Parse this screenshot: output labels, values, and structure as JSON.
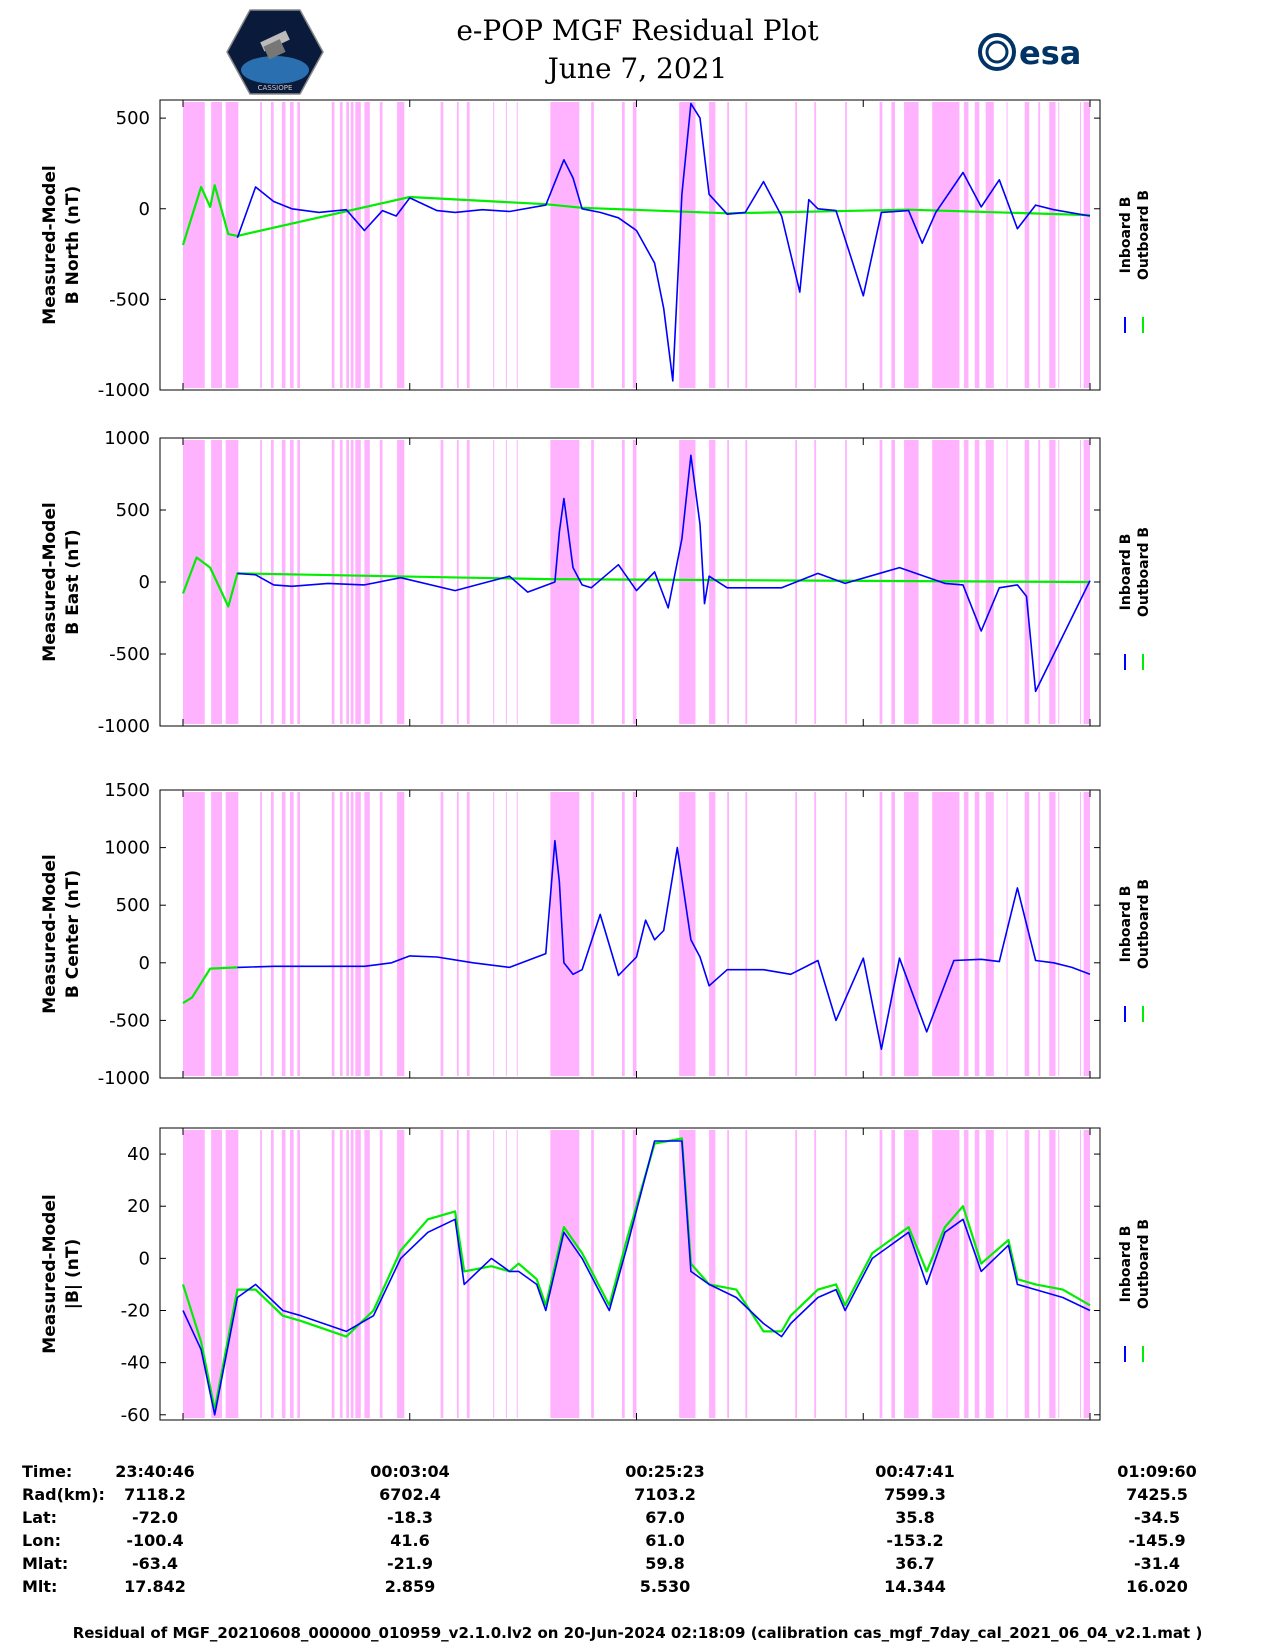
{
  "header": {
    "title_line1": "e-POP MGF Residual Plot",
    "title_line2": "June 7, 2021",
    "logo_left_text": "CASSIOPE",
    "logo_right_text": "esa"
  },
  "legend": {
    "inboard": "Inboard B",
    "outboard": "Outboard B"
  },
  "colors": {
    "inboard": "#0000ff",
    "outboard": "#00ee00",
    "shading": "#ffb3ff"
  },
  "shading_regions": [
    [
      0.0,
      0.024
    ],
    [
      0.031,
      0.043
    ],
    [
      0.047,
      0.061
    ],
    [
      0.085,
      0.087
    ],
    [
      0.097,
      0.1
    ],
    [
      0.109,
      0.113
    ],
    [
      0.118,
      0.122
    ],
    [
      0.126,
      0.129
    ],
    [
      0.164,
      0.167
    ],
    [
      0.173,
      0.176
    ],
    [
      0.18,
      0.183
    ],
    [
      0.185,
      0.188
    ],
    [
      0.19,
      0.196
    ],
    [
      0.2,
      0.206
    ],
    [
      0.217,
      0.22
    ],
    [
      0.236,
      0.244
    ],
    [
      0.284,
      0.287
    ],
    [
      0.302,
      0.304
    ],
    [
      0.313,
      0.316
    ],
    [
      0.342,
      0.343
    ],
    [
      0.356,
      0.357
    ],
    [
      0.368,
      0.369
    ],
    [
      0.405,
      0.437
    ],
    [
      0.45,
      0.453
    ],
    [
      0.484,
      0.487
    ],
    [
      0.496,
      0.5
    ],
    [
      0.547,
      0.565
    ],
    [
      0.58,
      0.587
    ],
    [
      0.6,
      0.602
    ],
    [
      0.62,
      0.622
    ],
    [
      0.675,
      0.677
    ],
    [
      0.696,
      0.698
    ],
    [
      0.73,
      0.732
    ],
    [
      0.768,
      0.771
    ],
    [
      0.781,
      0.785
    ],
    [
      0.795,
      0.811
    ],
    [
      0.826,
      0.856
    ],
    [
      0.861,
      0.866
    ],
    [
      0.873,
      0.878
    ],
    [
      0.885,
      0.894
    ],
    [
      0.908,
      0.909
    ],
    [
      0.928,
      0.933
    ],
    [
      0.943,
      0.945
    ],
    [
      0.955,
      0.962
    ],
    [
      0.965,
      0.966
    ],
    [
      0.989,
      0.99
    ],
    [
      0.993,
      1.0
    ]
  ],
  "chart_data": [
    {
      "type": "line",
      "ylabel_line1": "Measured-Model",
      "ylabel_line2": "B North (nT)",
      "ylim": [
        -1000,
        600
      ],
      "yticks": [
        -1000,
        -500,
        0,
        500
      ],
      "ytick_labels": [
        "-1000",
        "-500",
        "0",
        "500"
      ],
      "series": [
        {
          "name": "Inboard B",
          "x": [
            0.06,
            0.08,
            0.1,
            0.12,
            0.15,
            0.18,
            0.2,
            0.22,
            0.235,
            0.25,
            0.28,
            0.3,
            0.33,
            0.36,
            0.4,
            0.42,
            0.43,
            0.44,
            0.46,
            0.48,
            0.5,
            0.52,
            0.53,
            0.54,
            0.55,
            0.56,
            0.57,
            0.58,
            0.6,
            0.62,
            0.64,
            0.66,
            0.68,
            0.69,
            0.7,
            0.72,
            0.75,
            0.77,
            0.8,
            0.815,
            0.83,
            0.86,
            0.88,
            0.9,
            0.92,
            0.94,
            0.96,
            1.0
          ],
          "values": [
            -160,
            120,
            40,
            0,
            -20,
            -5,
            -120,
            -10,
            -40,
            60,
            -10,
            -20,
            -5,
            -15,
            20,
            270,
            170,
            0,
            -20,
            -50,
            -120,
            -300,
            -550,
            -950,
            80,
            580,
            500,
            80,
            -30,
            -20,
            150,
            -40,
            -460,
            50,
            0,
            -10,
            -480,
            -20,
            -10,
            -190,
            -20,
            200,
            10,
            160,
            -110,
            20,
            -5,
            -40
          ]
        },
        {
          "name": "Outboard B",
          "x": [
            0.0,
            0.02,
            0.03,
            0.035,
            0.05,
            0.06,
            0.25,
            0.4,
            0.44,
            0.6,
            0.8,
            1.0
          ],
          "values": [
            -200,
            120,
            10,
            130,
            -140,
            -150,
            65,
            25,
            5,
            -25,
            -5,
            -35
          ]
        }
      ]
    },
    {
      "type": "line",
      "ylabel_line1": "Measured-Model",
      "ylabel_line2": "B East (nT)",
      "ylim": [
        -1000,
        1000
      ],
      "yticks": [
        -1000,
        -500,
        0,
        500,
        1000
      ],
      "ytick_labels": [
        "-1000",
        "-500",
        "0",
        "500",
        "1000"
      ],
      "series": [
        {
          "name": "Inboard B",
          "x": [
            0.06,
            0.08,
            0.1,
            0.12,
            0.16,
            0.2,
            0.24,
            0.3,
            0.33,
            0.36,
            0.38,
            0.41,
            0.415,
            0.42,
            0.43,
            0.44,
            0.45,
            0.48,
            0.5,
            0.52,
            0.535,
            0.55,
            0.56,
            0.57,
            0.575,
            0.58,
            0.6,
            0.66,
            0.7,
            0.73,
            0.79,
            0.84,
            0.86,
            0.88,
            0.9,
            0.92,
            0.93,
            0.94,
            1.0
          ],
          "values": [
            60,
            50,
            -20,
            -30,
            -10,
            -20,
            30,
            -60,
            -10,
            40,
            -70,
            0,
            350,
            580,
            100,
            -20,
            -40,
            120,
            -60,
            70,
            -180,
            300,
            880,
            400,
            -150,
            40,
            -40,
            -40,
            60,
            -10,
            100,
            -10,
            -20,
            -340,
            -40,
            -20,
            -100,
            -760,
            10
          ]
        },
        {
          "name": "Outboard B",
          "x": [
            0.0,
            0.015,
            0.03,
            0.05,
            0.06,
            0.4,
            0.7,
            1.0
          ],
          "values": [
            -80,
            170,
            100,
            -170,
            60,
            20,
            10,
            0
          ]
        }
      ]
    },
    {
      "type": "line",
      "ylabel_line1": "Measured-Model",
      "ylabel_line2": "B Center (nT)",
      "ylim": [
        -1000,
        1500
      ],
      "yticks": [
        -1000,
        -500,
        0,
        500,
        1000,
        1500
      ],
      "ytick_labels": [
        "-1000",
        "-500",
        "0",
        "500",
        "1000",
        "1500"
      ],
      "series": [
        {
          "name": "Inboard B",
          "x": [
            0.06,
            0.1,
            0.15,
            0.2,
            0.23,
            0.25,
            0.28,
            0.32,
            0.36,
            0.4,
            0.41,
            0.415,
            0.42,
            0.43,
            0.44,
            0.46,
            0.48,
            0.5,
            0.51,
            0.52,
            0.53,
            0.545,
            0.56,
            0.57,
            0.58,
            0.6,
            0.64,
            0.67,
            0.7,
            0.72,
            0.75,
            0.77,
            0.79,
            0.82,
            0.85,
            0.88,
            0.9,
            0.92,
            0.94,
            0.96,
            0.98,
            1.0
          ],
          "values": [
            -40,
            -30,
            -30,
            -30,
            0,
            60,
            50,
            0,
            -40,
            80,
            1060,
            700,
            0,
            -100,
            -60,
            420,
            -110,
            50,
            370,
            200,
            280,
            1000,
            200,
            50,
            -200,
            -60,
            -60,
            -100,
            20,
            -500,
            40,
            -750,
            40,
            -600,
            20,
            30,
            10,
            650,
            20,
            0,
            -40,
            -100
          ]
        },
        {
          "name": "Outboard B",
          "x": [
            0.0,
            0.01,
            0.03,
            0.06
          ],
          "values": [
            -350,
            -300,
            -50,
            -40
          ]
        }
      ]
    },
    {
      "type": "line",
      "ylabel_line1": "Measured-Model",
      "ylabel_line2": "|B| (nT)",
      "ylim": [
        -62,
        50
      ],
      "yticks": [
        -60,
        -40,
        -20,
        0,
        20,
        40
      ],
      "ytick_labels": [
        "-60",
        "-40",
        "-20",
        "0",
        "20",
        "40"
      ],
      "series": [
        {
          "name": "Inboard B",
          "x": [
            0.0,
            0.02,
            0.035,
            0.06,
            0.08,
            0.11,
            0.13,
            0.18,
            0.21,
            0.24,
            0.27,
            0.3,
            0.31,
            0.34,
            0.36,
            0.37,
            0.39,
            0.4,
            0.42,
            0.44,
            0.47,
            0.49,
            0.52,
            0.55,
            0.56,
            0.58,
            0.61,
            0.64,
            0.66,
            0.67,
            0.7,
            0.72,
            0.73,
            0.76,
            0.8,
            0.82,
            0.84,
            0.86,
            0.88,
            0.91,
            0.92,
            0.94,
            0.97,
            1.0
          ],
          "values": [
            -20,
            -35,
            -60,
            -15,
            -10,
            -20,
            -22,
            -28,
            -22,
            0,
            10,
            15,
            -10,
            0,
            -5,
            -5,
            -10,
            -20,
            10,
            0,
            -20,
            5,
            45,
            45,
            -5,
            -10,
            -15,
            -25,
            -30,
            -25,
            -15,
            -12,
            -20,
            0,
            10,
            -10,
            10,
            15,
            -5,
            5,
            -10,
            -12,
            -15,
            -20
          ]
        },
        {
          "name": "Outboard B",
          "x": [
            0.0,
            0.02,
            0.035,
            0.06,
            0.08,
            0.11,
            0.13,
            0.18,
            0.21,
            0.24,
            0.27,
            0.3,
            0.31,
            0.34,
            0.36,
            0.37,
            0.39,
            0.4,
            0.42,
            0.44,
            0.47,
            0.49,
            0.52,
            0.55,
            0.56,
            0.58,
            0.61,
            0.64,
            0.66,
            0.67,
            0.7,
            0.72,
            0.73,
            0.76,
            0.8,
            0.82,
            0.84,
            0.86,
            0.88,
            0.91,
            0.92,
            0.94,
            0.97,
            1.0
          ],
          "values": [
            -10,
            -32,
            -58,
            -12,
            -12,
            -22,
            -24,
            -30,
            -20,
            3,
            15,
            18,
            -5,
            -3,
            -5,
            -2,
            -8,
            -18,
            12,
            2,
            -18,
            8,
            44,
            46,
            -2,
            -10,
            -12,
            -28,
            -28,
            -22,
            -12,
            -10,
            -18,
            2,
            12,
            -5,
            12,
            20,
            -2,
            7,
            -8,
            -10,
            -12,
            -18
          ]
        }
      ]
    }
  ],
  "info": {
    "labels": [
      "Time:",
      "Rad(km):",
      "Lat:",
      "Lon:",
      "Mlat:",
      "Mlt:"
    ],
    "columns": [
      [
        "23:40:46",
        "7118.2",
        "-72.0",
        "-100.4",
        "-63.4",
        "17.842"
      ],
      [
        "00:03:04",
        "6702.4",
        "-18.3",
        "41.6",
        "-21.9",
        "2.859"
      ],
      [
        "00:25:23",
        "7103.2",
        "67.0",
        "61.0",
        "59.8",
        "5.530"
      ],
      [
        "00:47:41",
        "7599.3",
        "35.8",
        "-153.2",
        "36.7",
        "14.344"
      ],
      [
        "01:09:60",
        "7425.5",
        "-34.5",
        "-145.9",
        "-31.4",
        "16.020"
      ]
    ]
  },
  "footer": "Residual of MGF_20210608_000000_010959_v2.1.0.lv2 on 20-Jun-2024 02:18:09 (calibration cas_mgf_7day_cal_2021_06_04_v2.1.mat )"
}
